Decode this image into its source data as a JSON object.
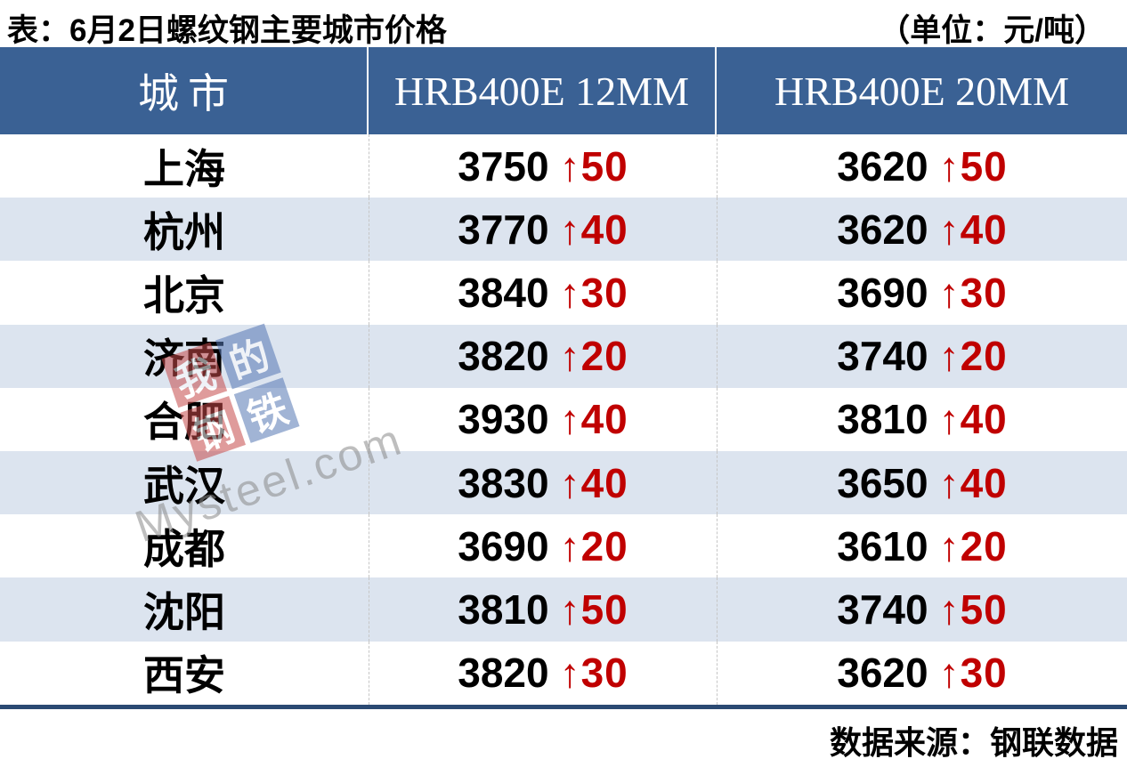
{
  "title": "表：6月2日螺纹钢主要城市价格",
  "unit_note": "（单位：元/吨）",
  "arrow_up": "↑",
  "table": {
    "columns": [
      "城市",
      "HRB400E 12MM",
      "HRB400E 20MM"
    ],
    "rows": [
      {
        "city": "上海",
        "price_12mm": "3750",
        "change_12mm": "50",
        "price_20mm": "3620",
        "change_20mm": "50"
      },
      {
        "city": "杭州",
        "price_12mm": "3770",
        "change_12mm": "40",
        "price_20mm": "3620",
        "change_20mm": "40"
      },
      {
        "city": "北京",
        "price_12mm": "3840",
        "change_12mm": "30",
        "price_20mm": "3690",
        "change_20mm": "30"
      },
      {
        "city": "济南",
        "price_12mm": "3820",
        "change_12mm": "20",
        "price_20mm": "3740",
        "change_20mm": "20"
      },
      {
        "city": "合肥",
        "price_12mm": "3930",
        "change_12mm": "40",
        "price_20mm": "3810",
        "change_20mm": "40"
      },
      {
        "city": "武汉",
        "price_12mm": "3830",
        "change_12mm": "40",
        "price_20mm": "3650",
        "change_20mm": "40"
      },
      {
        "city": "成都",
        "price_12mm": "3690",
        "change_12mm": "20",
        "price_20mm": "3610",
        "change_20mm": "20"
      },
      {
        "city": "沈阳",
        "price_12mm": "3810",
        "change_12mm": "50",
        "price_20mm": "3740",
        "change_20mm": "50"
      },
      {
        "city": "西安",
        "price_12mm": "3820",
        "change_12mm": "30",
        "price_20mm": "3620",
        "change_20mm": "30"
      }
    ]
  },
  "footer": {
    "source": "数据来源：钢联数据"
  },
  "watermark": {
    "text": "Mysteel.com",
    "logo_chars": [
      "我",
      "的",
      "钢",
      "铁"
    ]
  },
  "colors": {
    "header_bg": "#3A6194",
    "header_text": "#FFFFFF",
    "row_alt_bg": "#DCE4EF",
    "up_red": "#C00000",
    "bottom_border": "#2B4A73",
    "watermark_red": "#C64A4A",
    "watermark_blue": "#5577B4"
  },
  "chart_data": {
    "type": "table",
    "title": "表：6月2日螺纹钢主要城市价格",
    "unit": "元/吨",
    "columns": [
      "城市",
      "HRB400E 12MM",
      "HRB400E 20MM"
    ],
    "rows": [
      [
        "上海",
        "3750 ↑50",
        "3620 ↑50"
      ],
      [
        "杭州",
        "3770 ↑40",
        "3620 ↑40"
      ],
      [
        "北京",
        "3840 ↑30",
        "3690 ↑30"
      ],
      [
        "济南",
        "3820 ↑20",
        "3740 ↑20"
      ],
      [
        "合肥",
        "3930 ↑40",
        "3810 ↑40"
      ],
      [
        "武汉",
        "3830 ↑40",
        "3650 ↑40"
      ],
      [
        "成都",
        "3690 ↑20",
        "3610 ↑20"
      ],
      [
        "沈阳",
        "3810 ↑50",
        "3740 ↑50"
      ],
      [
        "西安",
        "3820 ↑30",
        "3620 ↑30"
      ]
    ],
    "all_changes_direction": "up",
    "source": "数据来源：钢联数据"
  }
}
